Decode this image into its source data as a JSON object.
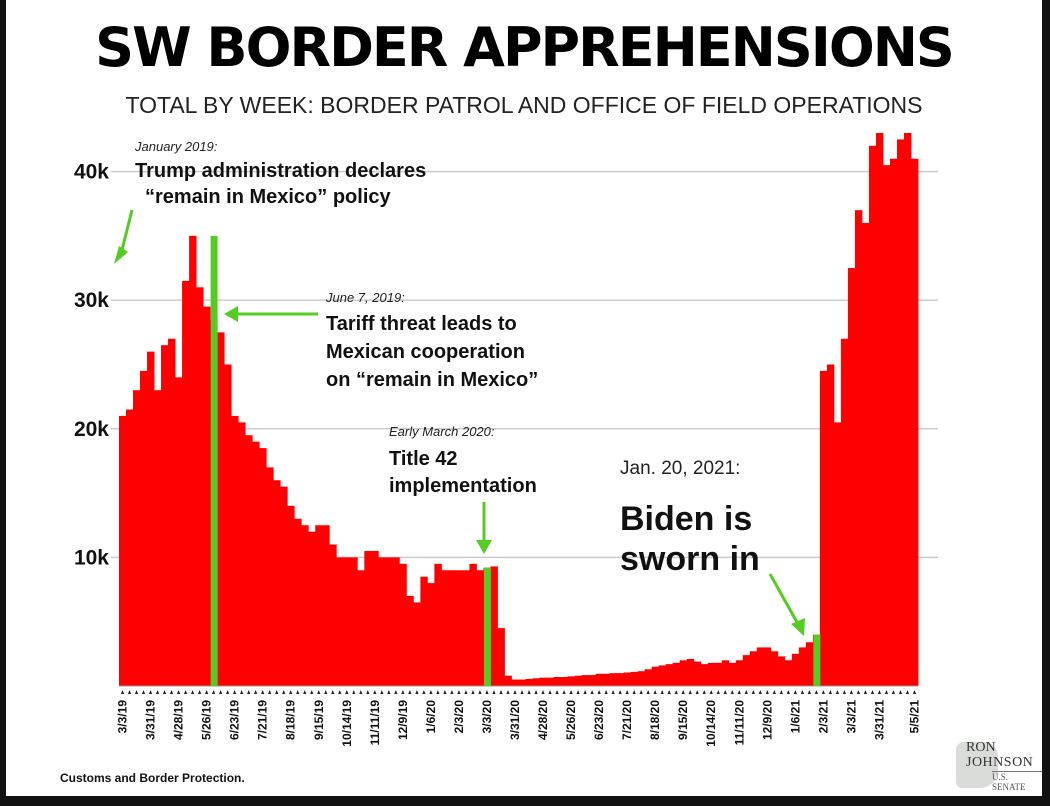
{
  "chart_data": {
    "type": "bar",
    "title": "SW BORDER APPREHENSIONS",
    "subtitle": "TOTAL BY WEEK: BORDER PATROL AND OFFICE OF FIELD OPERATIONS",
    "ylim": [
      0,
      43000
    ],
    "yticks": [
      10000,
      20000,
      30000,
      40000
    ],
    "ytick_labels": [
      "10k",
      "20k",
      "30k",
      "40k"
    ],
    "grid": true,
    "bar_color": "#ff0000",
    "marker_color": "#55cc22",
    "xtick_labels": [
      "3/3/19",
      "3/31/19",
      "4/28/19",
      "5/26/19",
      "6/23/19",
      "7/21/19",
      "8/18/19",
      "9/15/19",
      "10/14/19",
      "11/11/19",
      "12/9/19",
      "1/6/20",
      "2/3/20",
      "3/3/20",
      "3/31/20",
      "4/28/20",
      "5/26/20",
      "6/23/20",
      "7/21/20",
      "8/18/20",
      "9/15/20",
      "10/14/20",
      "11/11/20",
      "12/9/20",
      "1/6/21",
      "2/3/21",
      "3/3/21",
      "3/31/21",
      "5/5/21"
    ],
    "xtick_index": [
      0,
      4,
      8,
      12,
      16,
      20,
      24,
      28,
      32,
      36,
      40,
      44,
      48,
      52,
      56,
      60,
      64,
      68,
      72,
      76,
      80,
      84,
      88,
      92,
      96,
      100,
      104,
      108,
      113
    ],
    "values": [
      21000,
      21500,
      23000,
      24500,
      26000,
      23000,
      26500,
      27000,
      24000,
      31500,
      35000,
      31000,
      29500,
      28500,
      27500,
      25000,
      21000,
      20500,
      19500,
      19000,
      18500,
      17000,
      16000,
      15500,
      14000,
      13000,
      12500,
      12000,
      12500,
      12500,
      11000,
      10000,
      10000,
      10000,
      9000,
      10500,
      10500,
      10000,
      10000,
      10000,
      9500,
      7000,
      6500,
      8500,
      8000,
      9500,
      9000,
      9000,
      9000,
      9000,
      9500,
      9000,
      9200,
      9300,
      4500,
      800,
      500,
      500,
      550,
      600,
      650,
      650,
      700,
      700,
      750,
      800,
      850,
      850,
      950,
      950,
      1000,
      1000,
      1050,
      1100,
      1150,
      1300,
      1500,
      1600,
      1700,
      1800,
      2000,
      2100,
      1900,
      1700,
      1800,
      1800,
      2000,
      1800,
      2000,
      2400,
      2700,
      3000,
      3000,
      2700,
      2300,
      2000,
      2500,
      3000,
      3400,
      4000,
      24500,
      25000,
      20500,
      27000,
      32500,
      37000,
      36000,
      42000,
      43000,
      40500,
      41000,
      42500,
      43000,
      41000
    ],
    "annotations": [
      {
        "date_label": "January 2019:",
        "text": [
          "Trump administration declares",
          "“remain in Mexico” policy"
        ]
      },
      {
        "date_label": "June 7, 2019:",
        "text": [
          "Tariff threat leads to",
          "Mexican cooperation",
          "on “remain in Mexico”"
        ],
        "bar_index": 13
      },
      {
        "date_label": "Early March 2020:",
        "text": [
          "Title 42",
          "implementation"
        ],
        "bar_index": 52
      },
      {
        "date_label": "Jan. 20, 2021:",
        "text": [
          "Biden is",
          "sworn in"
        ],
        "bar_index": 99
      }
    ]
  },
  "source": "Customs and Border Protection.",
  "logo": {
    "line1": "RON",
    "line2": "JOHNSON",
    "line3": "U.S. SENATE"
  }
}
